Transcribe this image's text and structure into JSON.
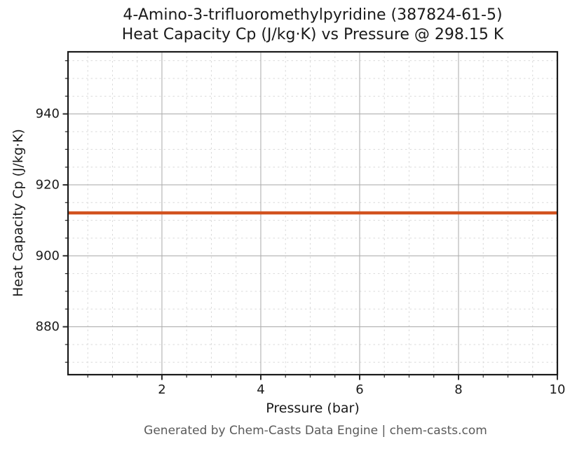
{
  "title": {
    "line1": "4-Amino-3-trifluoromethylpyridine (387824-61-5)",
    "line2": "Heat Capacity Cp (J/kg·K) vs Pressure @ 298.15 K"
  },
  "footer": "Generated by Chem-Casts Data Engine | chem-casts.com",
  "chart_data": {
    "type": "line",
    "title": "4-Amino-3-trifluoromethylpyridine (387824-61-5) — Heat Capacity Cp (J/kg·K) vs Pressure @ 298.15 K",
    "compound": "4-Amino-3-trifluoromethylpyridine",
    "cas_number": "387824-61-5",
    "temperature": "298.15 K",
    "xlabel": "Pressure (bar)",
    "ylabel": "Heat Capacity Cp (J/kg·K)",
    "xlim": [
      0.1,
      10
    ],
    "ylim": [
      866.5,
      957.5
    ],
    "xticks": [
      2,
      4,
      6,
      8,
      10
    ],
    "yticks": [
      880,
      900,
      920,
      940
    ],
    "x_minor_step": 0.5,
    "y_minor_step": 5,
    "grid": true,
    "legend": "none",
    "series": [
      {
        "name": "Heat Capacity Cp",
        "color": "#d2521f",
        "x": [
          0.1,
          10.0
        ],
        "y": [
          912.1,
          912.1
        ]
      }
    ]
  },
  "colors": {
    "line": "#d2521f",
    "spine": "#1a1a1a",
    "tick": "#262626",
    "major_grid": "#b0b0b0",
    "minor_grid": "#d9d9d9",
    "text": "#1a1a1a",
    "footer_text": "#5a5a5a",
    "background": "#ffffff"
  }
}
